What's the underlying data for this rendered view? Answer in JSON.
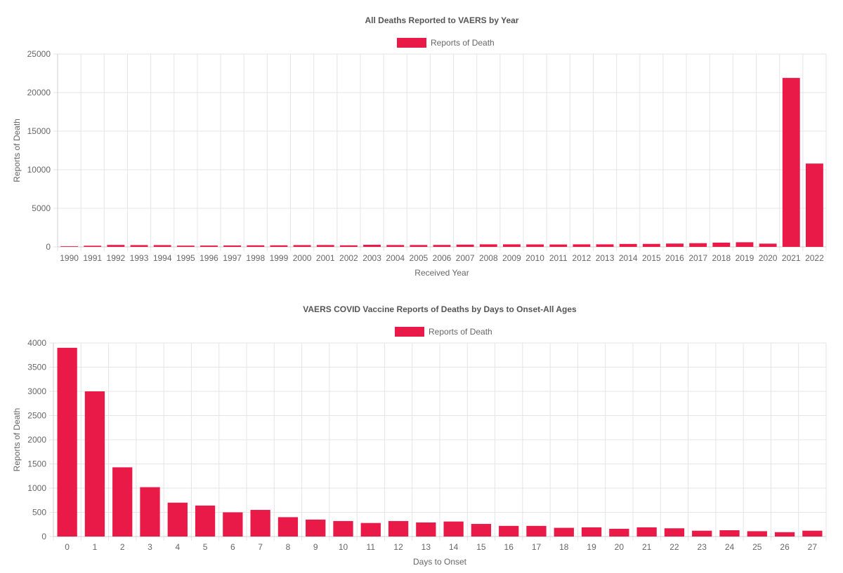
{
  "colors": {
    "bar": "#E91948",
    "grid": "#e5e5e5",
    "text": "#666666"
  },
  "chart_data": [
    {
      "type": "bar",
      "title": "All Deaths Reported to VAERS by Year",
      "legend": [
        "Reports of Death"
      ],
      "legend_position": "top",
      "xlabel": "Received Year",
      "ylabel": "Reports of Death",
      "ylim": [
        0,
        25000
      ],
      "yticks": [
        0,
        5000,
        10000,
        15000,
        20000,
        25000
      ],
      "grid": true,
      "categories": [
        "1990",
        "1991",
        "1992",
        "1993",
        "1994",
        "1995",
        "1996",
        "1997",
        "1998",
        "1999",
        "2000",
        "2001",
        "2002",
        "2003",
        "2004",
        "2005",
        "2006",
        "2007",
        "2008",
        "2009",
        "2010",
        "2011",
        "2012",
        "2013",
        "2014",
        "2015",
        "2016",
        "2017",
        "2018",
        "2019",
        "2020",
        "2021",
        "2022"
      ],
      "series": [
        {
          "name": "Reports of Death",
          "values": [
            80,
            150,
            250,
            230,
            230,
            160,
            170,
            180,
            200,
            200,
            230,
            240,
            200,
            270,
            240,
            240,
            250,
            290,
            330,
            330,
            320,
            310,
            330,
            330,
            380,
            390,
            430,
            480,
            550,
            600,
            420,
            21900,
            10800
          ]
        }
      ]
    },
    {
      "type": "bar",
      "title": "VAERS COVID Vaccine Reports of Deaths by Days to Onset-All Ages",
      "legend": [
        "Reports of Death"
      ],
      "legend_position": "top",
      "xlabel": "Days to Onset",
      "ylabel": "Reports of Death",
      "ylim": [
        0,
        4000
      ],
      "yticks": [
        0,
        500,
        1000,
        1500,
        2000,
        2500,
        3000,
        3500,
        4000
      ],
      "grid": true,
      "categories": [
        "0",
        "1",
        "2",
        "3",
        "4",
        "5",
        "6",
        "7",
        "8",
        "9",
        "10",
        "11",
        "12",
        "13",
        "14",
        "15",
        "16",
        "17",
        "18",
        "19",
        "20",
        "21",
        "22",
        "23",
        "24",
        "25",
        "26",
        "27"
      ],
      "series": [
        {
          "name": "Reports of Death",
          "values": [
            3900,
            3000,
            1430,
            1020,
            700,
            640,
            500,
            550,
            400,
            350,
            320,
            280,
            320,
            290,
            310,
            260,
            220,
            220,
            180,
            190,
            160,
            190,
            170,
            120,
            130,
            110,
            90,
            120
          ]
        }
      ]
    }
  ]
}
